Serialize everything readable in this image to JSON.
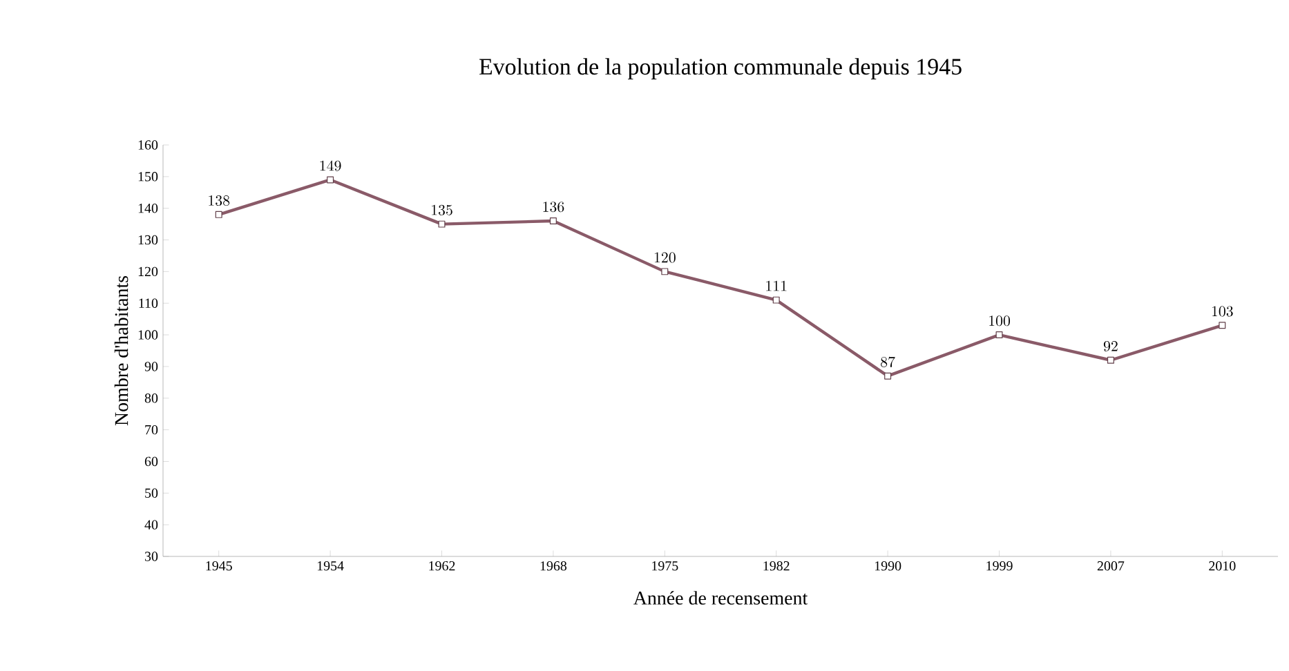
{
  "chart_data": {
    "type": "line",
    "title": "Evolution de la population communale depuis 1945",
    "xlabel": "Année de recensement",
    "ylabel": "Nombre d'habitants",
    "categories": [
      "1945",
      "1954",
      "1962",
      "1968",
      "1975",
      "1982",
      "1990",
      "1999",
      "2007",
      "2010"
    ],
    "series": [
      {
        "color": "#8a5a68",
        "values": [
          138,
          149,
          135,
          136,
          120,
          111,
          87,
          100,
          92,
          103
        ]
      }
    ],
    "ylim": [
      30,
      160
    ],
    "yticks": [
      30,
      40,
      50,
      60,
      70,
      80,
      90,
      100,
      110,
      120,
      130,
      140,
      150,
      160
    ],
    "data_labels": true,
    "marker": "square",
    "line_style": "solid"
  }
}
